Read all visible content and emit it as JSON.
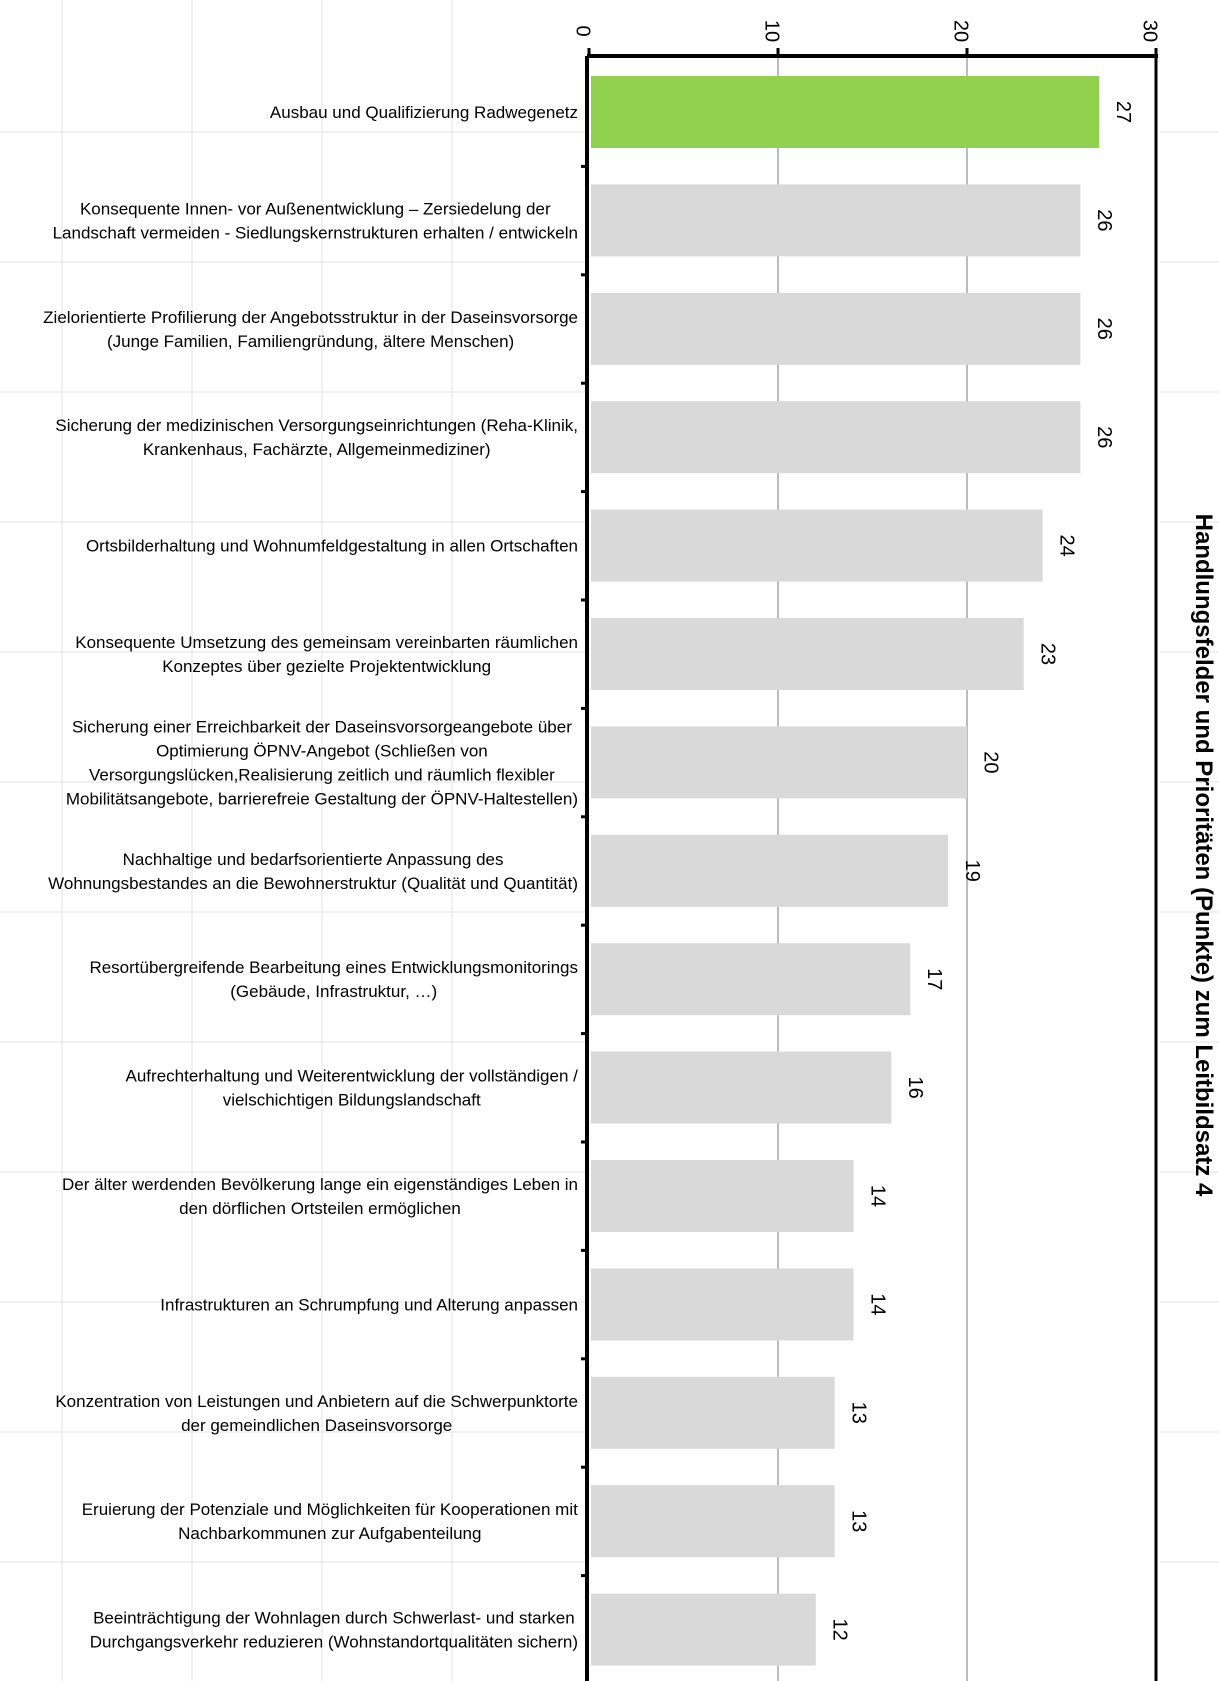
{
  "chart_data": {
    "type": "bar",
    "orientation": "horizontal",
    "title": "Handlungsfelder und Prioritäten (Punkte) zum Leitbildsatz 4",
    "xlabel": "",
    "ylabel": "",
    "xlim": [
      0,
      30
    ],
    "ticks": [
      "0",
      "10",
      "20",
      "30"
    ],
    "grid": true,
    "legend": "none",
    "highlight_color": "#92d050",
    "bar_color": "#d9d9d9",
    "categories": [
      [
        "Ausbau und Qualifizierung Radwegenetz"
      ],
      [
        "Konsequente Innen- vor Außenentwicklung – Zersiedelung der",
        "Landschaft vermeiden - Siedlungskernstrukturen erhalten / entwickeln"
      ],
      [
        "Zielorientierte Profilierung der Angebotsstruktur in der Daseinsvorsorge",
        "(Junge Familien, Familiengründung, ältere Menschen)"
      ],
      [
        "Sicherung der medizinischen Versorgungseinrichtungen (Reha-Klinik,",
        "Krankenhaus, Fachärzte, Allgemeinmediziner)"
      ],
      [
        "Ortsbilderhaltung und Wohnumfeldgestaltung in allen Ortschaften"
      ],
      [
        "Konsequente Umsetzung des gemeinsam vereinbarten räumlichen",
        "Konzeptes über gezielte Projektentwicklung"
      ],
      [
        "Sicherung einer Erreichbarkeit der Daseinsvorsorgeangebote über",
        "Optimierung ÖPNV-Angebot (Schließen von",
        "Versorgungslücken,Realisierung zeitlich und räumlich flexibler",
        "Mobilitätsangebote, barrierefreie Gestaltung der ÖPNV-Haltestellen)"
      ],
      [
        "Nachhaltige und bedarfsorientierte Anpassung des",
        "Wohnungsbestandes an die Bewohnerstruktur (Qualität und Quantität)"
      ],
      [
        "Resortübergreifende Bearbeitung eines Entwicklungsmonitorings",
        "(Gebäude, Infrastruktur, …)"
      ],
      [
        "Aufrechterhaltung und Weiterentwicklung der vollständigen /",
        "vielschichtigen Bildungslandschaft"
      ],
      [
        "Der älter werdenden Bevölkerung lange ein eigenständiges Leben in",
        "den dörflichen Ortsteilen ermöglichen"
      ],
      [
        "Infrastrukturen an Schrumpfung und Alterung anpassen"
      ],
      [
        "Konzentration von Leistungen und Anbietern auf die Schwerpunktorte",
        "der gemeindlichen Daseinsvorsorge"
      ],
      [
        "Eruierung der Potenziale und Möglichkeiten für Kooperationen mit",
        "Nachbarkommunen zur Aufgabenteilung"
      ],
      [
        "Beeinträchtigung der Wohnlagen durch Schwerlast- und starken",
        "Durchgangsverkehr reduzieren (Wohnstandortqualitäten sichern)"
      ]
    ],
    "values": [
      27,
      26,
      26,
      26,
      24,
      23,
      20,
      19,
      17,
      16,
      14,
      14,
      13,
      13,
      12
    ],
    "data_labels": [
      "27",
      "26",
      "26",
      "26",
      "24",
      "23",
      "20",
      "19",
      "17",
      "16",
      "14",
      "14",
      "13",
      "13",
      "12"
    ]
  }
}
